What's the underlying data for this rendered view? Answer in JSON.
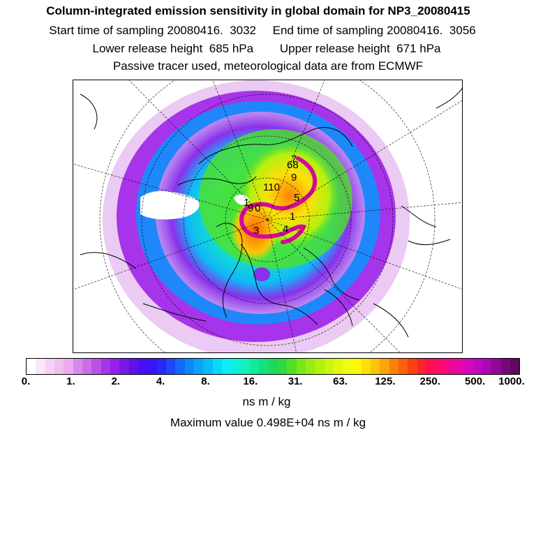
{
  "title": "Column-integrated emission sensitivity in global domain for NP3_20080415",
  "sampling": {
    "start_label": "Start time of sampling 20080416.  3032",
    "end_label": "End time of sampling 20080416.  3056"
  },
  "release": {
    "lower_label": "Lower release height  685 hPa",
    "upper_label": "Upper release height  671 hPa"
  },
  "tracer_note": "Passive tracer used, meteorological data are from ECMWF",
  "map": {
    "track_labels": [
      "7",
      "68",
      "9",
      "110",
      "5",
      "1",
      "4",
      "3",
      "1",
      "9",
      "0"
    ]
  },
  "colorbar": {
    "tick_labels": [
      "0.",
      "1.",
      "2.",
      "4.",
      "8.",
      "16.",
      "31.",
      "63.",
      "125.",
      "250.",
      "500.",
      "1000."
    ],
    "colors": [
      "#ffffff",
      "#fbe6fb",
      "#f6d2f6",
      "#f0bff0",
      "#eaaaf0",
      "#d98ae8",
      "#cc6ee8",
      "#bb4fe8",
      "#a634ea",
      "#9520ea",
      "#7a18e8",
      "#6010ea",
      "#4a0ef0",
      "#3a14f4",
      "#2a28f8",
      "#1e48fa",
      "#1468fa",
      "#0c88fa",
      "#08a4fa",
      "#08bcfa",
      "#08d8fa",
      "#0cecf4",
      "#10f0d8",
      "#14f0bc",
      "#14e89c",
      "#14e07c",
      "#1cd85c",
      "#30d840",
      "#50e028",
      "#78e818",
      "#98ec14",
      "#b4f010",
      "#ccf410",
      "#e0f810",
      "#f0fc10",
      "#fcf808",
      "#fce008",
      "#fcc408",
      "#fca408",
      "#fc8008",
      "#fc6008",
      "#fc4010",
      "#fc2030",
      "#fc1050",
      "#f80c70",
      "#f00890",
      "#e408a8",
      "#d408b8",
      "#c008c0",
      "#a808b8",
      "#900898",
      "#780878",
      "#600860"
    ]
  },
  "unit_label": "ns m / kg",
  "max_label": "Maximum value  0.498E+04 ns m / kg"
}
